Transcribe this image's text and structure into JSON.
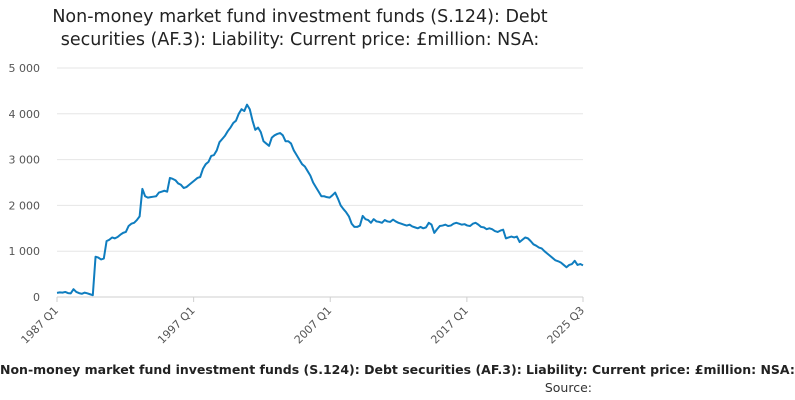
{
  "chart_data": {
    "type": "line",
    "title_lines": [
      "Non-money market fund investment funds (S.124): Debt",
      "securities (AF.3): Liability: Current price: £million: NSA:"
    ],
    "xlabel": "",
    "ylabel": "",
    "ylim": [
      0,
      5000
    ],
    "yticks": [
      0,
      1000,
      2000,
      3000,
      4000,
      5000
    ],
    "ytick_labels": [
      "0",
      "1 000",
      "2 000",
      "3 000",
      "4 000",
      "5 000"
    ],
    "xticks": [
      "1987 Q1",
      "1997 Q1",
      "2007 Q1",
      "2017 Q1",
      "2025 Q3"
    ],
    "grid": "horizontal",
    "legend": "none",
    "line_color": "#0f7dbf",
    "x_start": "1987 Q1",
    "x_end": "2025 Q3",
    "series": [
      {
        "name": "",
        "values": [
          90,
          100,
          95,
          110,
          85,
          80,
          170,
          110,
          85,
          70,
          95,
          80,
          60,
          40,
          880,
          860,
          820,
          840,
          1220,
          1250,
          1300,
          1280,
          1310,
          1360,
          1400,
          1420,
          1550,
          1600,
          1620,
          1680,
          1760,
          2360,
          2200,
          2170,
          2180,
          2190,
          2200,
          2280,
          2300,
          2320,
          2300,
          2600,
          2580,
          2550,
          2480,
          2450,
          2380,
          2400,
          2450,
          2500,
          2550,
          2600,
          2620,
          2800,
          2900,
          2950,
          3080,
          3100,
          3200,
          3380,
          3450,
          3520,
          3620,
          3700,
          3800,
          3850,
          4000,
          4100,
          4060,
          4200,
          4100,
          3850,
          3650,
          3700,
          3600,
          3400,
          3350,
          3300,
          3480,
          3530,
          3560,
          3580,
          3530,
          3400,
          3400,
          3350,
          3200,
          3100,
          3000,
          2900,
          2850,
          2750,
          2650,
          2500,
          2400,
          2300,
          2200,
          2200,
          2180,
          2170,
          2220,
          2280,
          2150,
          2000,
          1920,
          1850,
          1760,
          1600,
          1530,
          1530,
          1560,
          1770,
          1700,
          1680,
          1620,
          1700,
          1650,
          1640,
          1620,
          1680,
          1650,
          1640,
          1690,
          1650,
          1620,
          1600,
          1580,
          1560,
          1580,
          1540,
          1520,
          1500,
          1530,
          1500,
          1520,
          1620,
          1580,
          1400,
          1480,
          1550,
          1560,
          1580,
          1550,
          1560,
          1600,
          1620,
          1600,
          1580,
          1590,
          1560,
          1550,
          1600,
          1620,
          1580,
          1530,
          1520,
          1480,
          1500,
          1480,
          1440,
          1420,
          1450,
          1470,
          1280,
          1300,
          1320,
          1300,
          1320,
          1200,
          1250,
          1300,
          1280,
          1220,
          1150,
          1120,
          1080,
          1060,
          1000,
          950,
          900,
          850,
          800,
          780,
          750,
          700,
          650,
          700,
          720,
          790,
          700,
          720,
          690
        ]
      }
    ]
  },
  "footer": {
    "series_label": "Non-money market fund investment funds (S.124): Debt securities (AF.3): Liability: Current price: £million: NSA:",
    "source_label": "Source:"
  }
}
